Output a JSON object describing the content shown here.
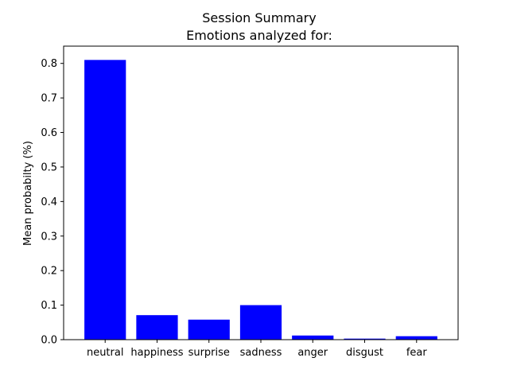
{
  "chart_data": {
    "type": "bar",
    "title": "Session Summary",
    "subtitle": "Emotions analyzed for:",
    "xlabel": "",
    "ylabel": "Mean probabilty (%)",
    "categories": [
      "neutral",
      "happiness",
      "surprise",
      "sadness",
      "anger",
      "disgust",
      "fear"
    ],
    "values": [
      0.81,
      0.071,
      0.058,
      0.1,
      0.012,
      0.003,
      0.01
    ],
    "ylim": [
      0,
      0.85
    ],
    "yticks": [
      0.0,
      0.1,
      0.2,
      0.3,
      0.4,
      0.5,
      0.6,
      0.7,
      0.8
    ],
    "ytick_labels": [
      "0.0",
      "0.1",
      "0.2",
      "0.3",
      "0.4",
      "0.5",
      "0.6",
      "0.7",
      "0.8"
    ],
    "bar_color": "#0000ff",
    "grid": false,
    "legend": "none"
  }
}
